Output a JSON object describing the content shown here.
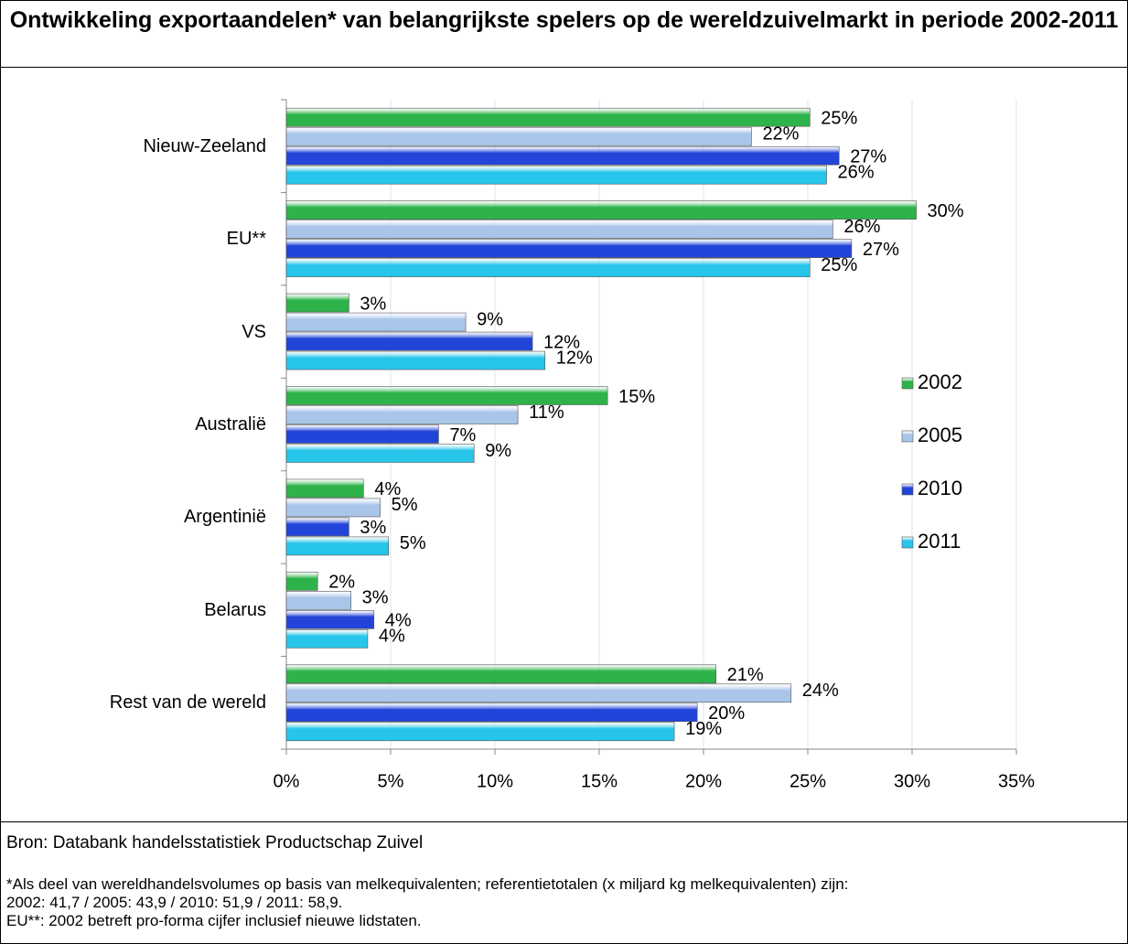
{
  "chart_data": {
    "type": "bar",
    "orientation": "horizontal",
    "title": "Ontwikkeling exportaandelen* van belangrijkste spelers op de wereldzuivelmarkt in periode 2002-2011",
    "categories": [
      "Nieuw-Zeeland",
      "EU**",
      "VS",
      "Australië",
      "Argentinië",
      "Belarus",
      "Rest van de wereld"
    ],
    "series": [
      {
        "name": "2002",
        "color": "#2db34a",
        "values": [
          25.1,
          30.2,
          3.0,
          15.4,
          3.7,
          1.5,
          20.6
        ],
        "value_labels": [
          "25%",
          "30%",
          "3%",
          "15%",
          "4%",
          "2%",
          "21%"
        ]
      },
      {
        "name": "2005",
        "color": "#a9c6ea",
        "values": [
          22.3,
          26.2,
          8.6,
          11.1,
          4.5,
          3.1,
          24.2
        ],
        "value_labels": [
          "22%",
          "26%",
          "9%",
          "11%",
          "5%",
          "3%",
          "24%"
        ]
      },
      {
        "name": "2010",
        "color": "#2244d8",
        "values": [
          26.5,
          27.1,
          11.8,
          7.3,
          3.0,
          4.2,
          19.7
        ],
        "value_labels": [
          "27%",
          "27%",
          "12%",
          "7%",
          "3%",
          "4%",
          "20%"
        ]
      },
      {
        "name": "2011",
        "color": "#27c5ea",
        "values": [
          25.9,
          25.1,
          12.4,
          9.0,
          4.9,
          3.9,
          18.6
        ],
        "value_labels": [
          "26%",
          "25%",
          "12%",
          "9%",
          "5%",
          "4%",
          "19%"
        ]
      }
    ],
    "xlim": [
      0,
      35
    ],
    "xticks": [
      {
        "value": 0,
        "label": "0%"
      },
      {
        "value": 5,
        "label": "5%"
      },
      {
        "value": 10,
        "label": "10%"
      },
      {
        "value": 15,
        "label": "15%"
      },
      {
        "value": 20,
        "label": "20%"
      },
      {
        "value": 25,
        "label": "25%"
      },
      {
        "value": 30,
        "label": "30%"
      },
      {
        "value": 35,
        "label": "35%"
      }
    ],
    "grid": true,
    "legend": "right"
  },
  "footer": {
    "source": "Bron: Databank handelsstatistiek Productschap Zuivel",
    "notes": [
      "*Als deel van wereldhandelsvolumes op basis van melkequivalenten; referentietotalen (x miljard kg melkequivalenten) zijn:",
      "2002: 41,7 / 2005: 43,9 / 2010: 51,9 / 2011: 58,9.",
      "EU**:  2002 betreft pro-forma cijfer inclusief nieuwe lidstaten."
    ]
  }
}
